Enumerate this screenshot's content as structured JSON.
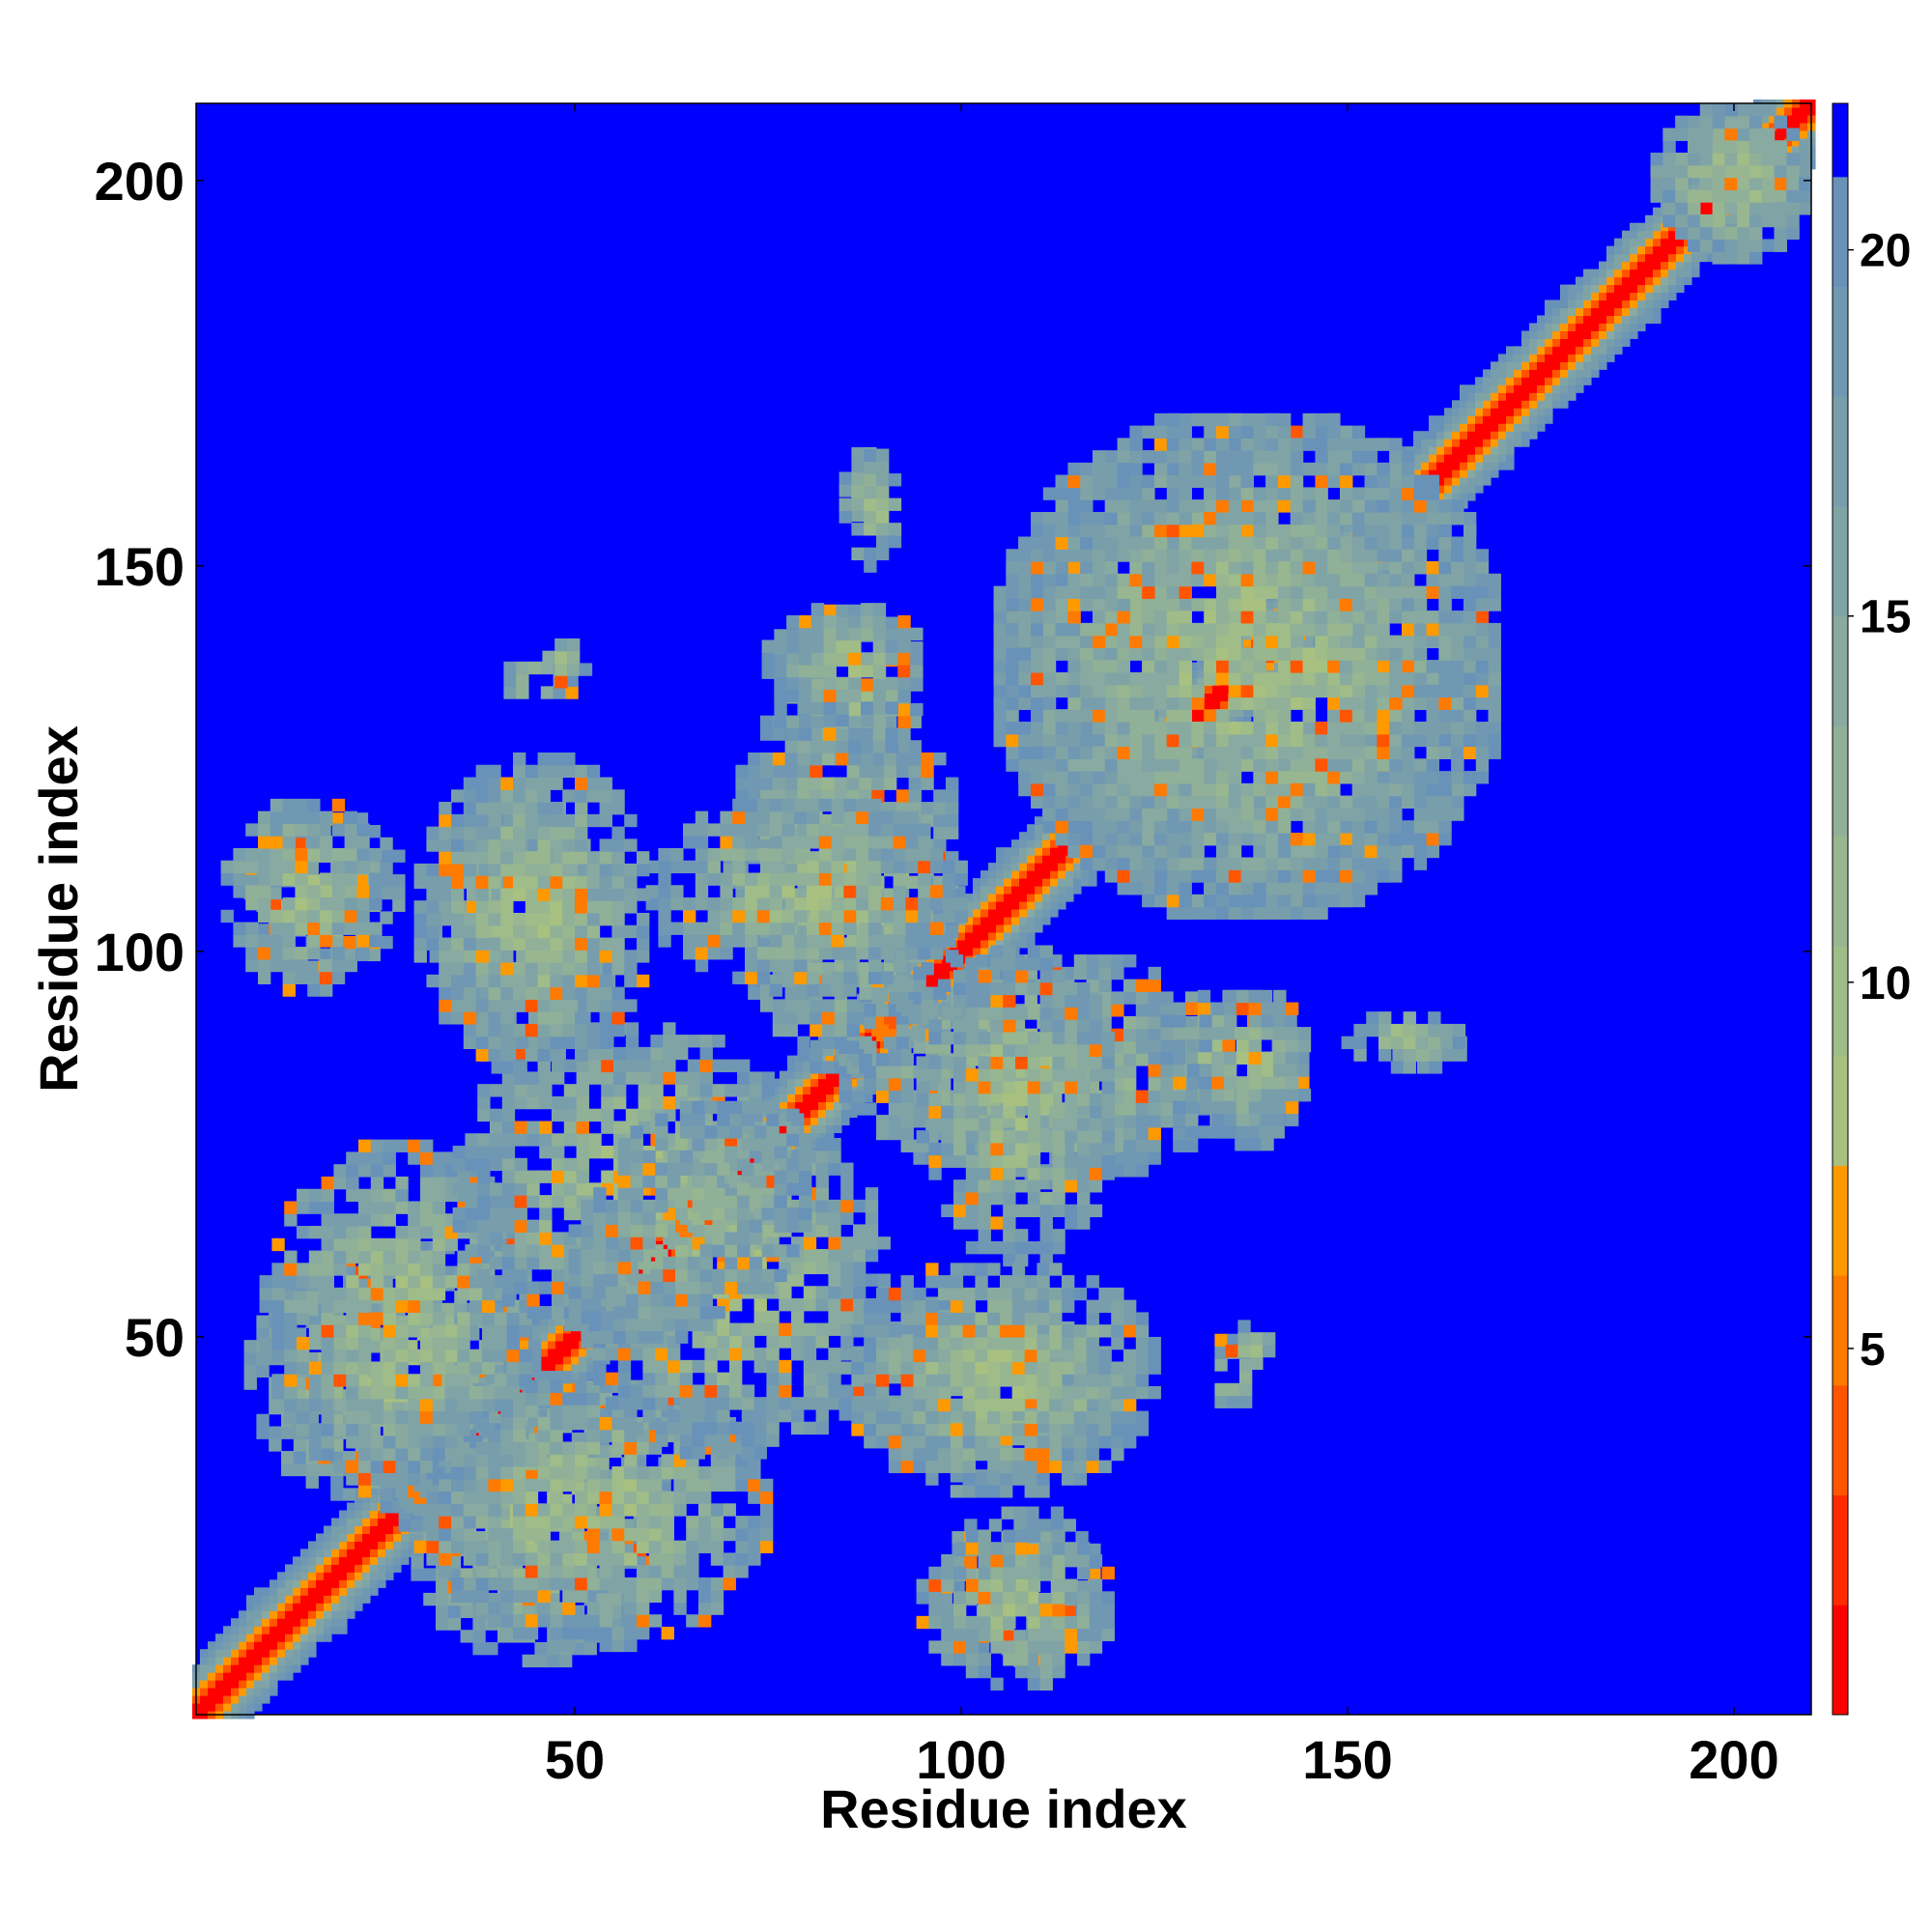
{
  "chart_data": {
    "type": "heatmap",
    "title": "",
    "xlabel": "Residue index",
    "ylabel": "Residue index",
    "xlim": [
      1,
      210
    ],
    "ylim": [
      1,
      210
    ],
    "xticks": [
      50,
      100,
      150,
      200
    ],
    "yticks": [
      50,
      100,
      150,
      200
    ],
    "grid": false,
    "background_value_color": "#0000ff",
    "colorbar": {
      "ticks": [
        5,
        10,
        15,
        20
      ],
      "range": [
        0,
        22
      ],
      "levels": [
        {
          "max": 1.5,
          "color": "#ff0000"
        },
        {
          "max": 3,
          "color": "#ff2a00"
        },
        {
          "max": 4.5,
          "color": "#ff5500"
        },
        {
          "max": 6,
          "color": "#ff7a00"
        },
        {
          "max": 7.5,
          "color": "#ff9900"
        },
        {
          "max": 9,
          "color": "#a8c080"
        },
        {
          "max": 10.5,
          "color": "#a0bc88"
        },
        {
          "max": 12,
          "color": "#98b690"
        },
        {
          "max": 13.5,
          "color": "#90b098"
        },
        {
          "max": 15,
          "color": "#88aaa0"
        },
        {
          "max": 16.5,
          "color": "#80a4a6"
        },
        {
          "max": 18,
          "color": "#789eac"
        },
        {
          "max": 19.5,
          "color": "#7098b2"
        },
        {
          "max": 21,
          "color": "#6892b8"
        },
        {
          "max": 22,
          "color": "#0000ff"
        }
      ]
    },
    "contact_regions": [
      {
        "x": [
          1,
          210
        ],
        "y": [
          1,
          210
        ],
        "note": "diagonal band"
      },
      {
        "x": [
          8,
          28
        ],
        "y": [
          98,
          118
        ]
      },
      {
        "x": [
          32,
          55
        ],
        "y": [
          85,
          120
        ]
      },
      {
        "x": [
          8,
          45
        ],
        "y": [
          28,
          62
        ]
      },
      {
        "x": [
          30,
          75
        ],
        "y": [
          10,
          45
        ]
      },
      {
        "x": [
          35,
          80
        ],
        "y": [
          50,
          90
        ]
      },
      {
        "x": [
          70,
          100
        ],
        "y": [
          85,
          135
        ]
      },
      {
        "x": [
          75,
          95
        ],
        "y": [
          125,
          145
        ]
      },
      {
        "x": [
          85,
          90
        ],
        "y": [
          155,
          165
        ]
      },
      {
        "x": [
          40,
          50
        ],
        "y": [
          132,
          138
        ]
      },
      {
        "x": [
          95,
          120
        ],
        "y": [
          60,
          100
        ]
      },
      {
        "x": [
          85,
          125
        ],
        "y": [
          30,
          60
        ]
      },
      {
        "x": [
          95,
          120
        ],
        "y": [
          5,
          25
        ]
      },
      {
        "x": [
          105,
          170
        ],
        "y": [
          105,
          170
        ]
      },
      {
        "x": [
          130,
          145
        ],
        "y": [
          75,
          95
        ]
      },
      {
        "x": [
          135,
          140
        ],
        "y": [
          45,
          52
        ]
      },
      {
        "x": [
          150,
          165
        ],
        "y": [
          85,
          92
        ]
      },
      {
        "x": [
          190,
          210
        ],
        "y": [
          190,
          210
        ]
      }
    ]
  }
}
